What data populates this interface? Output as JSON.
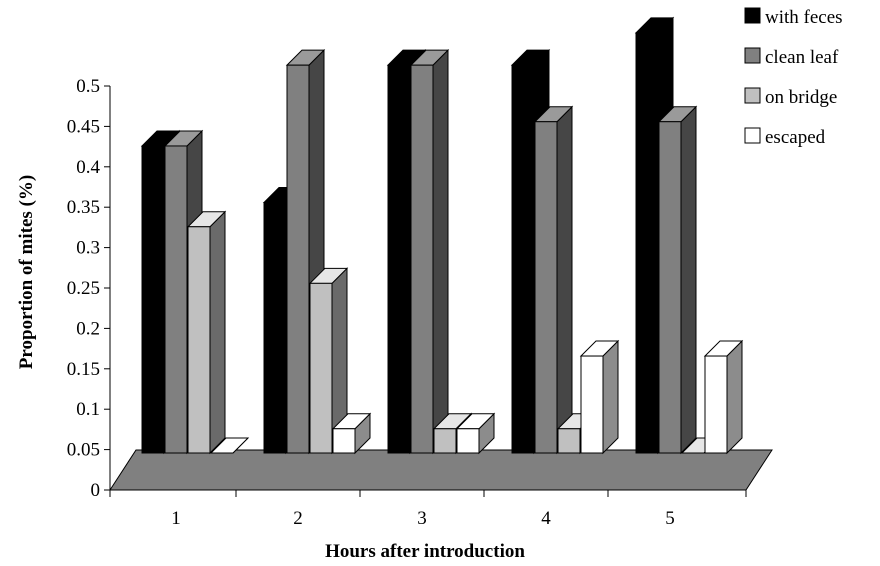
{
  "chart_data": {
    "type": "bar",
    "style": "3d-clustered",
    "title": "",
    "xlabel": "Hours  after introduction",
    "ylabel": "Proportion of mites (%)",
    "categories": [
      "1",
      "2",
      "3",
      "4",
      "5"
    ],
    "yticks": [
      "0",
      "0.05",
      "0.1",
      "0.15",
      "0.2",
      "0.25",
      "0.3",
      "0.35",
      "0.4",
      "0.45",
      "0.5"
    ],
    "ylim": [
      0,
      0.5
    ],
    "legend_position": "top-right",
    "series": [
      {
        "name": "with feces",
        "color": "#000000",
        "values": [
          0.38,
          0.31,
          0.48,
          0.48,
          0.52
        ]
      },
      {
        "name": "clean leaf",
        "color": "#808080",
        "values": [
          0.38,
          0.48,
          0.48,
          0.41,
          0.41
        ]
      },
      {
        "name": "on bridge",
        "color": "#c0c0c0",
        "values": [
          0.28,
          0.21,
          0.03,
          0.03,
          0.0
        ]
      },
      {
        "name": "escaped",
        "color": "#ffffff",
        "values": [
          0.0,
          0.03,
          0.03,
          0.12,
          0.12
        ]
      }
    ]
  }
}
